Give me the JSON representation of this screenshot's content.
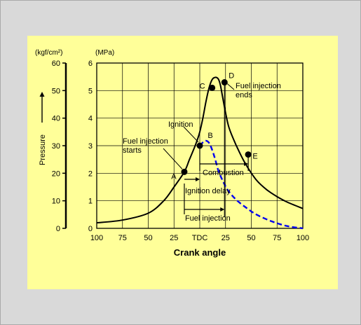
{
  "chart_data": {
    "type": "line",
    "xlabel": "Crank angle",
    "ylabel": "Pressure",
    "ylabel_left_unit": "(kgf/cm²)",
    "ylabel_right_unit": "(MPa)",
    "x_ticks": [
      "100",
      "75",
      "50",
      "25",
      "TDC",
      "25",
      "50",
      "75",
      "100"
    ],
    "x_values": [
      -100,
      -75,
      -50,
      -25,
      0,
      25,
      50,
      75,
      100
    ],
    "xlim": [
      -100,
      100
    ],
    "y_mpa_ticks": [
      "0",
      "1",
      "2",
      "3",
      "4",
      "5",
      "6"
    ],
    "ylim_mpa": [
      0,
      6
    ],
    "y_kgf_ticks": [
      "0",
      "10",
      "20",
      "30",
      "40",
      "50",
      "60"
    ],
    "ylim_kgf": [
      0,
      60
    ],
    "grid": true,
    "series": [
      {
        "style": "solid",
        "color": "#000000",
        "points": [
          [
            -100,
            0.2
          ],
          [
            -75,
            0.3
          ],
          [
            -50,
            0.55
          ],
          [
            -35,
            1.0
          ],
          [
            -25,
            1.5
          ],
          [
            -15,
            2.05
          ],
          [
            -10,
            2.5
          ],
          [
            -5,
            2.95
          ],
          [
            -2.5,
            3.2
          ],
          [
            0,
            3.5
          ],
          [
            3,
            4.0
          ],
          [
            6,
            4.6
          ],
          [
            9,
            5.1
          ],
          [
            12,
            5.4
          ],
          [
            15,
            5.48
          ],
          [
            18,
            5.42
          ],
          [
            20,
            5.2
          ],
          [
            22,
            4.8
          ],
          [
            25,
            4.2
          ],
          [
            28,
            3.7
          ],
          [
            32,
            3.3
          ],
          [
            38,
            2.8
          ],
          [
            45,
            2.3
          ],
          [
            55,
            1.75
          ],
          [
            65,
            1.4
          ],
          [
            75,
            1.15
          ],
          [
            85,
            0.95
          ],
          [
            100,
            0.72
          ]
        ]
      },
      {
        "style": "dashed",
        "color": "#0000ee",
        "points": [
          [
            0,
            3.0
          ],
          [
            3,
            3.12
          ],
          [
            6,
            3.18
          ],
          [
            9,
            3.1
          ],
          [
            12,
            2.85
          ],
          [
            15,
            2.5
          ],
          [
            18,
            2.1
          ],
          [
            22,
            1.75
          ],
          [
            27,
            1.4
          ],
          [
            35,
            1.05
          ],
          [
            45,
            0.75
          ],
          [
            55,
            0.5
          ],
          [
            70,
            0.25
          ],
          [
            85,
            0.08
          ],
          [
            100,
            0.0
          ]
        ]
      }
    ],
    "points": [
      {
        "label": "A",
        "x": -15,
        "y": 2.05
      },
      {
        "label": "B",
        "x": 0,
        "y": 3.0
      },
      {
        "label": "C",
        "x": 12,
        "y": 5.1
      },
      {
        "label": "D",
        "x": 24,
        "y": 5.3
      },
      {
        "label": "E",
        "x": 47,
        "y": 2.68
      }
    ],
    "annotations": {
      "fuel_injection_starts": "Fuel injection\nstarts",
      "ignition": "Ignition",
      "fuel_injection_ends": "Fuel injection\nends",
      "combustion": "Combustion",
      "ignition_delay": "Ignition delay",
      "fuel_injection": "Fuel injection"
    },
    "colors": {
      "panel": "#ffff99",
      "outer": "#d9d9d9",
      "grid": "#000000",
      "dashed": "#0000ee"
    }
  }
}
